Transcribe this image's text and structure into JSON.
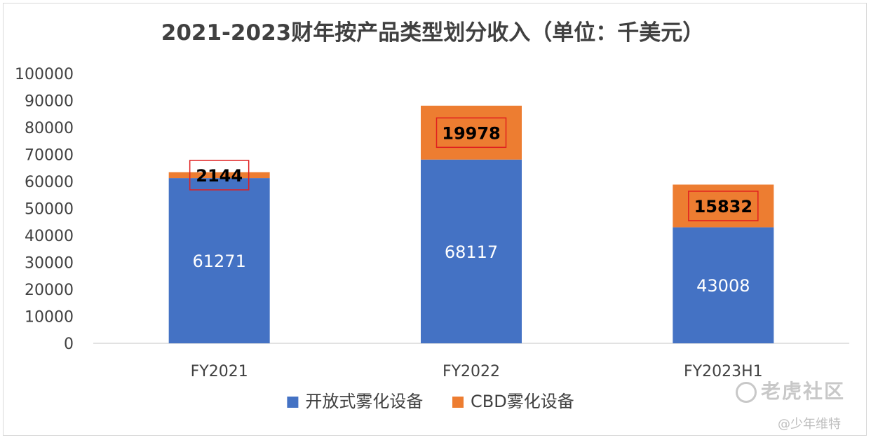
{
  "chart_data": {
    "type": "bar",
    "stacked": true,
    "title": "2021-2023财年按产品类型划分收入（单位：千美元）",
    "categories": [
      "FY2021",
      "FY2022",
      "FY2023H1"
    ],
    "series": [
      {
        "name": "开放式雾化设备",
        "color": "#4472C4",
        "values": [
          61271,
          68117,
          43008
        ]
      },
      {
        "name": "CBD雾化设备",
        "color": "#ED7D31",
        "values": [
          2144,
          19978,
          15832
        ]
      }
    ],
    "ylim": [
      0,
      100000
    ],
    "yticks": [
      "0",
      "10000",
      "20000",
      "30000",
      "40000",
      "50000",
      "60000",
      "70000",
      "80000",
      "90000",
      "100000"
    ],
    "grid": false,
    "legend": "bottom",
    "highlight_color": "#E02020"
  },
  "watermark": {
    "brand": "老虎社区",
    "author": "@少年维特"
  }
}
